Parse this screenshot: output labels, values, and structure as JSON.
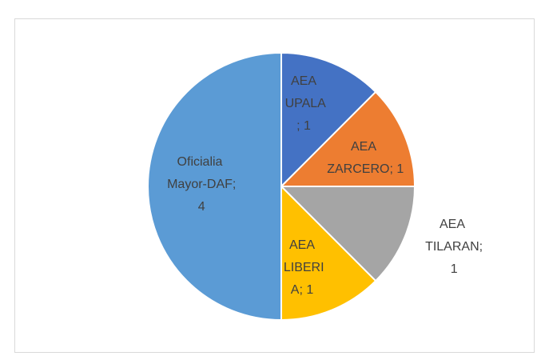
{
  "chart_data": {
    "type": "pie",
    "values": [
      1,
      1,
      1,
      1,
      4
    ],
    "value_labels": [
      "AEA UPALA; 1",
      "AEA ZARCERO; 1",
      "AEA TILARAN; 1",
      "AEA LIBERIA; 1",
      "Oficialia Mayor-DAF; 4"
    ],
    "colors": [
      "#4472c4",
      "#ed7d31",
      "#a5a5a5",
      "#ffc000",
      "#5b9bd5"
    ]
  }
}
